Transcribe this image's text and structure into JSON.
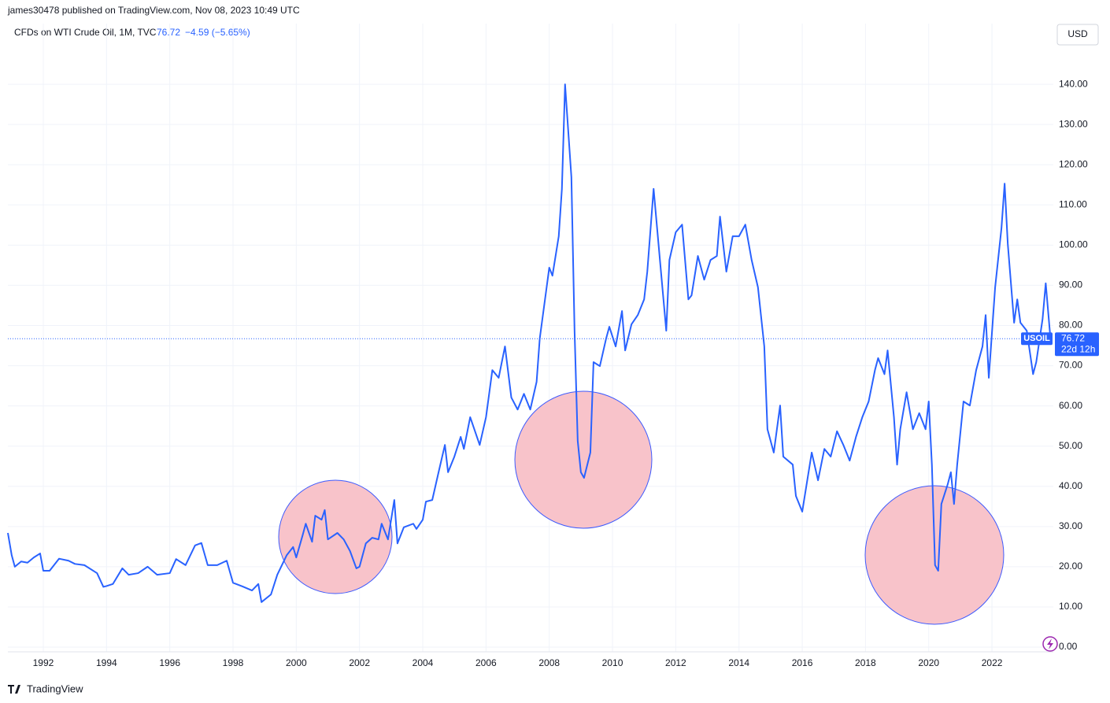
{
  "header": {
    "publisher": "james30478 published on TradingView.com, Nov 08, 2023 10:49 UTC",
    "symbol": "CFDs on WTI Crude Oil, 1M, TVC",
    "change": "−4.59 (−5.65%)",
    "currency": "USD",
    "footer": "TradingView"
  },
  "chart_data": {
    "type": "line",
    "x": [
      1990.88,
      1991.0,
      1991.1,
      1991.3,
      1991.5,
      1991.7,
      1991.9,
      1992.0,
      1992.2,
      1992.5,
      1992.8,
      1993.0,
      1993.3,
      1993.7,
      1993.9,
      1994.0,
      1994.2,
      1994.5,
      1994.7,
      1995.0,
      1995.3,
      1995.6,
      1996.0,
      1996.2,
      1996.5,
      1996.8,
      1997.0,
      1997.2,
      1997.5,
      1997.8,
      1998.0,
      1998.3,
      1998.6,
      1998.8,
      1998.9,
      1999.2,
      1999.4,
      1999.7,
      1999.9,
      2000.0,
      2000.2,
      2000.3,
      2000.5,
      2000.6,
      2000.8,
      2000.9,
      2001.0,
      2001.3,
      2001.5,
      2001.7,
      2001.9,
      2002.0,
      2002.2,
      2002.4,
      2002.6,
      2002.7,
      2002.9,
      2003.1,
      2003.2,
      2003.4,
      2003.7,
      2003.8,
      2004.0,
      2004.1,
      2004.3,
      2004.5,
      2004.7,
      2004.8,
      2005.0,
      2005.2,
      2005.3,
      2005.5,
      2005.8,
      2006.0,
      2006.2,
      2006.4,
      2006.6,
      2006.8,
      2007.0,
      2007.2,
      2007.4,
      2007.6,
      2007.7,
      2007.9,
      2008.0,
      2008.1,
      2008.3,
      2008.4,
      2008.5,
      2008.7,
      2008.8,
      2008.9,
      2009.0,
      2009.1,
      2009.3,
      2009.4,
      2009.6,
      2009.8,
      2009.9,
      2010.1,
      2010.3,
      2010.4,
      2010.6,
      2010.8,
      2011.0,
      2011.1,
      2011.3,
      2011.5,
      2011.7,
      2011.8,
      2012.0,
      2012.2,
      2012.4,
      2012.5,
      2012.7,
      2012.9,
      2013.1,
      2013.3,
      2013.4,
      2013.6,
      2013.8,
      2014.0,
      2014.2,
      2014.4,
      2014.6,
      2014.8,
      2014.9,
      2015.1,
      2015.3,
      2015.4,
      2015.7,
      2015.8,
      2016.0,
      2016.3,
      2016.5,
      2016.7,
      2016.9,
      2017.1,
      2017.3,
      2017.5,
      2017.7,
      2017.9,
      2018.1,
      2018.3,
      2018.4,
      2018.6,
      2018.7,
      2018.9,
      2019.0,
      2019.1,
      2019.3,
      2019.5,
      2019.7,
      2019.9,
      2020.0,
      2020.1,
      2020.2,
      2020.3,
      2020.4,
      2020.6,
      2020.7,
      2020.8,
      2020.9,
      2021.1,
      2021.3,
      2021.5,
      2021.7,
      2021.8,
      2021.9,
      2022.1,
      2022.3,
      2022.4,
      2022.5,
      2022.7,
      2022.8,
      2022.9,
      2023.1,
      2023.3,
      2023.4,
      2023.6,
      2023.7,
      2023.85
    ],
    "series": [
      {
        "name": "USOIL",
        "color": "#2962ff",
        "values": [
          28.4,
          22.9,
          20,
          21.3,
          21,
          22.3,
          23.3,
          19,
          19,
          22,
          21.5,
          20.7,
          20.4,
          18.4,
          15,
          15.2,
          15.7,
          19.6,
          18,
          18.4,
          20,
          18,
          18.4,
          21.9,
          20.4,
          25.3,
          25.9,
          20.4,
          20.4,
          21.5,
          16,
          15.1,
          14.1,
          15.7,
          11.2,
          13.1,
          18,
          22.9,
          24.9,
          22.3,
          27.8,
          30.7,
          26.2,
          32.7,
          31.7,
          34.1,
          26.8,
          28.4,
          26.8,
          23.9,
          19.6,
          20,
          25.8,
          27.2,
          26.8,
          30.7,
          26.8,
          36.6,
          25.8,
          29.8,
          30.7,
          29.4,
          31.7,
          36.2,
          36.6,
          43.5,
          50.3,
          43.5,
          47.4,
          52.3,
          49.3,
          57.2,
          50.3,
          57.2,
          68.9,
          67,
          74.8,
          62.1,
          59.1,
          63,
          59.1,
          66,
          76.8,
          88.5,
          94.4,
          92.4,
          102.2,
          114,
          140,
          116.9,
          78.7,
          51.3,
          43.5,
          42.1,
          48.4,
          70.9,
          69.9,
          76.8,
          79.7,
          74.8,
          83.6,
          73.8,
          80.3,
          82.6,
          86.5,
          93.4,
          114,
          96.3,
          78.7,
          96.3,
          103.2,
          105.1,
          86.5,
          87.5,
          97.3,
          91.4,
          96.3,
          97.3,
          107.1,
          93.4,
          102.2,
          102.2,
          105.1,
          96.3,
          89.5,
          74.8,
          54.2,
          48.4,
          60.1,
          47.4,
          45.4,
          37.6,
          33.7,
          48.4,
          41.5,
          49.3,
          47.4,
          53.7,
          50.3,
          46.4,
          52.3,
          57.2,
          61.1,
          68.9,
          71.9,
          67.9,
          73.8,
          57.2,
          45.4,
          54.2,
          63.4,
          54.2,
          58.2,
          54.2,
          61.1,
          45.4,
          20.4,
          19,
          35.6,
          40.5,
          43.5,
          35.6,
          45.4,
          61.1,
          60.1,
          68.9,
          74.8,
          82.6,
          67,
          89.5,
          104.2,
          115.3,
          100.3,
          80.7,
          86.5,
          80.7,
          78.7,
          67.9,
          70.9,
          81.6,
          90.5,
          76.72
        ]
      }
    ],
    "xlim": [
      1990.88,
      2023.94
    ],
    "ylim": [
      -1.17,
      155.1
    ],
    "xticks": [
      1992,
      1994,
      1996,
      1998,
      2000,
      2002,
      2004,
      2006,
      2008,
      2010,
      2012,
      2014,
      2016,
      2018,
      2020,
      2022
    ],
    "yticks": [
      {
        "value": 0,
        "label": "0.00"
      },
      {
        "value": 10,
        "label": "10.00"
      },
      {
        "value": 20,
        "label": "20.00"
      },
      {
        "value": 30,
        "label": "30.00"
      },
      {
        "value": 40,
        "label": "40.00"
      },
      {
        "value": 50,
        "label": "50.00"
      },
      {
        "value": 60,
        "label": "60.00"
      },
      {
        "value": 70,
        "label": "70.00"
      },
      {
        "value": 80,
        "label": "80.00"
      },
      {
        "value": 90,
        "label": "90.00"
      },
      {
        "value": 100,
        "label": "100.00"
      },
      {
        "value": 110,
        "label": "110.00"
      },
      {
        "value": 120,
        "label": "120.00"
      },
      {
        "value": 130,
        "label": "130.00"
      },
      {
        "value": 140,
        "label": "140.00"
      }
    ],
    "grid": true,
    "last_price": 76.72,
    "countdown": "22d 12h"
  }
}
